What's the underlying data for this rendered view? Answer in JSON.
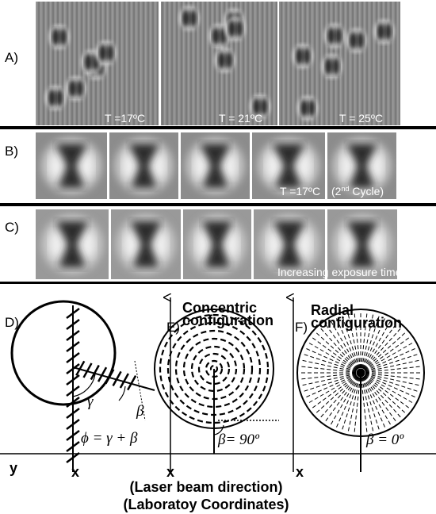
{
  "panels": {
    "a": {
      "label": "A)",
      "temperatures": [
        "T =17ºC",
        "T = 21ºC",
        "T = 25ºC"
      ]
    },
    "b": {
      "label": "B)",
      "temperature": "T =17ºC",
      "cycle": {
        "before": "(2",
        "superscript": "nd",
        "after": " Cycle)"
      }
    },
    "c": {
      "label": "C)",
      "caption": "Increasing exposure time"
    },
    "d": {
      "label": "D)",
      "gamma": "γ",
      "beta": "β",
      "equation": "ϕ = γ + β",
      "axis_y": "y",
      "axis_x": "x"
    },
    "e": {
      "label": "E)",
      "title_lines": [
        "Concentric",
        "configuration"
      ],
      "angle": "β= 90º",
      "axis_x": "x"
    },
    "f": {
      "label": "F)",
      "title_lines": [
        "Radial",
        "configuration"
      ],
      "angle": "β = 0º",
      "axis_x": "x"
    }
  },
  "footer": [
    "(Laser beam direction)",
    "(Laboratoy Coordinates)"
  ]
}
